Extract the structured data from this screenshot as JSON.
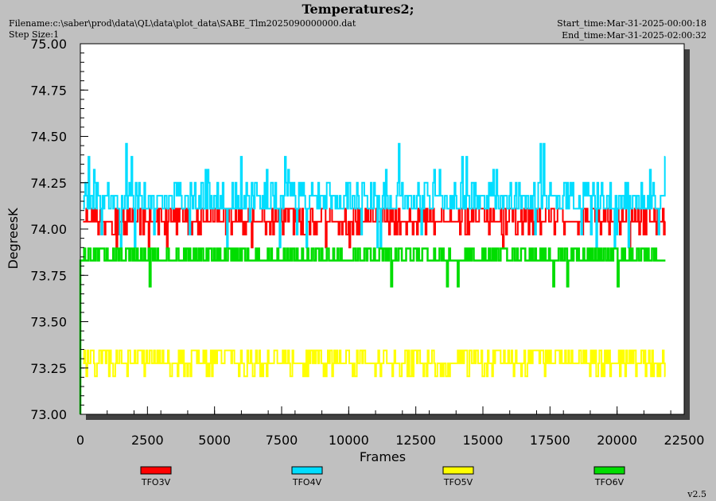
{
  "header": {
    "title": "Temperatures2;",
    "filename": "Filename:c:\\saber\\prod\\data\\QL\\data\\plot_data\\SABE_Tlm2025090000000.dat",
    "step_size": "Step Size:1",
    "start_time": "Start_time:Mar-31-2025-00:00:18",
    "end_time": "End_time:Mar-31-2025-02:00:32"
  },
  "footer": {
    "version": "v2.5"
  },
  "chart_data": {
    "type": "line",
    "xlabel": "Frames",
    "ylabel": "DegreesK",
    "xlim": [
      0,
      22500
    ],
    "ylim": [
      73.0,
      75.0
    ],
    "x_ticks": [
      0,
      2500,
      5000,
      7500,
      10000,
      12500,
      15000,
      17500,
      20000,
      22500
    ],
    "x_tick_labels": [
      "0",
      "2500",
      "5000",
      "7500",
      "10000",
      "12500",
      "15000",
      "17500",
      "20000",
      "22500"
    ],
    "y_ticks": [
      73.0,
      73.25,
      73.5,
      73.75,
      74.0,
      74.25,
      74.5,
      74.75,
      75.0
    ],
    "y_tick_labels": [
      "73.00",
      "73.25",
      "73.50",
      "73.75",
      "74.00",
      "74.25",
      "74.50",
      "74.75",
      "75.00"
    ],
    "x_data_end": 21800,
    "series": [
      {
        "name": "TFO3V",
        "color": "#ff0000",
        "base": 74.04,
        "levels": [
          74.04,
          74.11,
          73.97
        ],
        "spike_low": 73.9
      },
      {
        "name": "TFO4V",
        "color": "#00ddff",
        "base": 74.11,
        "levels": [
          74.11,
          74.18,
          74.25,
          74.32,
          74.39,
          74.46,
          74.04,
          73.97
        ],
        "spike_low": 73.9
      },
      {
        "name": "TFO5V",
        "color": "#ffff00",
        "base": 73.275,
        "levels": [
          73.275,
          73.345,
          73.205
        ],
        "spike_low": 73.205
      },
      {
        "name": "TFO6V",
        "color": "#00dd00",
        "base": 73.83,
        "levels": [
          73.83,
          73.895
        ],
        "spike_low": 73.69,
        "initial_low": 73.0
      }
    ]
  }
}
